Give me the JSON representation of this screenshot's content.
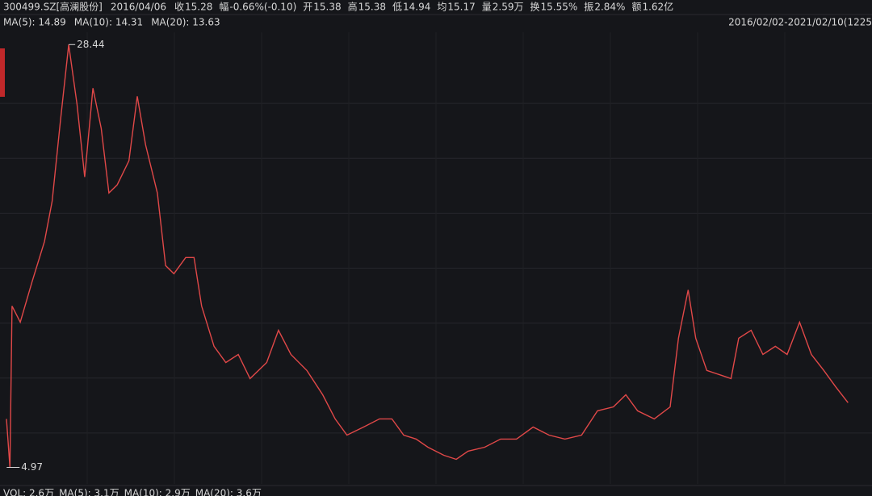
{
  "header": {
    "symbol": "300499.SZ[高澜股份]",
    "date": "2016/04/06",
    "fields": [
      {
        "label": "收",
        "value": "15.28",
        "color": "#2fc25b"
      },
      {
        "label": "幅",
        "value": "-0.66%(-0.10)",
        "color": "#2fc25b"
      },
      {
        "label": "开",
        "value": "15.38",
        "color": "#f04848"
      },
      {
        "label": "高",
        "value": "15.38",
        "color": "#f04848"
      },
      {
        "label": "低",
        "value": "14.94",
        "color": "#2fc25b"
      },
      {
        "label": "均",
        "value": "15.17",
        "color": "#2fc25b"
      },
      {
        "label": "量",
        "value": "2.59万",
        "color": "#d8d8d8"
      },
      {
        "label": "换",
        "value": "15.55%",
        "color": "#d8d8d8"
      },
      {
        "label": "振",
        "value": "2.84%",
        "color": "#d8d8d8"
      },
      {
        "label": "额",
        "value": "1.62亿",
        "color": "#d8d8d8"
      }
    ]
  },
  "ma_legend": [
    {
      "text": "MA(5): 14.89",
      "color": "#f0a020"
    },
    {
      "text": "MA(10): 14.31",
      "color": "#e8e030"
    },
    {
      "text": "MA(20): 13.63",
      "color": "#e040e0"
    }
  ],
  "range_label": "2016/02/02-2021/02/10(1225",
  "volume_legend": [
    {
      "text": "VOL: 2.6万",
      "color": "#d8d8d8"
    },
    {
      "text": "MA(5): 3.1万",
      "color": "#d8d8d8"
    },
    {
      "text": "MA(10): 2.9万",
      "color": "#f0a020"
    },
    {
      "text": "MA(20): 3.6万",
      "color": "#e040e0"
    }
  ],
  "chart_data": {
    "type": "line",
    "x": [
      0,
      5,
      8,
      20,
      37,
      55,
      66,
      78,
      90,
      102,
      113,
      125,
      137,
      148,
      160,
      177,
      189,
      201,
      218,
      230,
      242,
      259,
      271,
      282,
      300,
      317,
      335,
      352,
      376,
      393,
      411,
      434,
      457,
      475,
      492,
      516,
      539,
      557,
      574,
      592,
      609,
      632,
      650,
      667,
      691,
      714,
      737,
      761,
      784,
      807,
      831,
      854,
      877,
      895,
      912,
      936,
      959,
      971,
      985,
      996,
      1012,
      1029,
      1047,
      1058,
      1076,
      1093,
      1111,
      1128,
      1146,
      1163,
      1181,
      1198,
      1216
    ],
    "values": [
      7.66,
      4.97,
      13.93,
      13.03,
      15.27,
      17.51,
      19.75,
      24.23,
      28.44,
      25.12,
      21.09,
      26.02,
      23.78,
      20.2,
      20.65,
      21.99,
      25.57,
      22.88,
      20.2,
      16.17,
      15.72,
      16.62,
      16.62,
      13.93,
      11.69,
      10.79,
      11.24,
      9.9,
      10.79,
      12.58,
      11.24,
      10.35,
      9.0,
      7.66,
      6.76,
      7.21,
      7.66,
      7.66,
      6.76,
      6.54,
      6.09,
      5.64,
      5.42,
      5.87,
      6.09,
      6.54,
      6.54,
      7.21,
      6.76,
      6.54,
      6.76,
      8.11,
      8.33,
      9.0,
      8.11,
      7.66,
      8.33,
      12.14,
      14.82,
      12.14,
      10.35,
      10.13,
      9.9,
      12.14,
      12.58,
      11.24,
      11.69,
      11.24,
      13.03,
      11.24,
      10.35,
      9.45,
      8.56
    ],
    "color": "#e04848",
    "xlim": [
      0,
      1225
    ],
    "ylim": [
      4.5,
      28.9
    ],
    "grid": true,
    "high": {
      "x": 90,
      "value": 28.44
    },
    "low": {
      "x": 5,
      "value": 4.97
    }
  }
}
